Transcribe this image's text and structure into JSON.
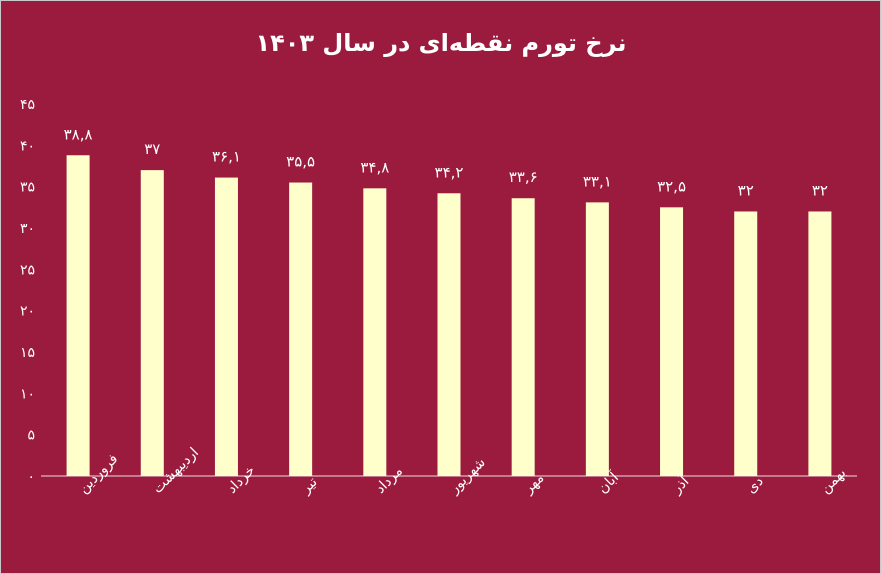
{
  "chart_data": {
    "type": "bar",
    "title": "نرخ تورم نقطه‌ای در سال ۱۴۰۳",
    "xlabel": "",
    "ylabel": "",
    "ylim": [
      0,
      45
    ],
    "yticks": [
      0,
      5,
      10,
      15,
      20,
      25,
      30,
      35,
      40,
      45
    ],
    "ytick_labels": [
      "۰",
      "۵",
      "۱۰",
      "۱۵",
      "۲۰",
      "۲۵",
      "۳۰",
      "۳۵",
      "۴۰",
      "۴۵"
    ],
    "grid": false,
    "legend": "none",
    "categories": [
      "فروردین",
      "اردیبهشت",
      "خرداد",
      "تیر",
      "مرداد",
      "شهریور",
      "مهر",
      "آبان",
      "آذر",
      "دی",
      "بهمن"
    ],
    "values": [
      38.8,
      37,
      36.1,
      35.5,
      34.8,
      34.2,
      33.6,
      33.1,
      32.5,
      32,
      32
    ],
    "data_labels": [
      "۳۸,۸",
      "۳۷",
      "۳۶,۱",
      "۳۵,۵",
      "۳۴,۸",
      "۳۴,۲",
      "۳۳,۶",
      "۳۳,۱",
      "۳۲,۵",
      "۳۲",
      "۳۲"
    ],
    "colors": {
      "background": "#9b1b3f",
      "bar": "#ffffcc",
      "text": "#ffffff"
    }
  }
}
